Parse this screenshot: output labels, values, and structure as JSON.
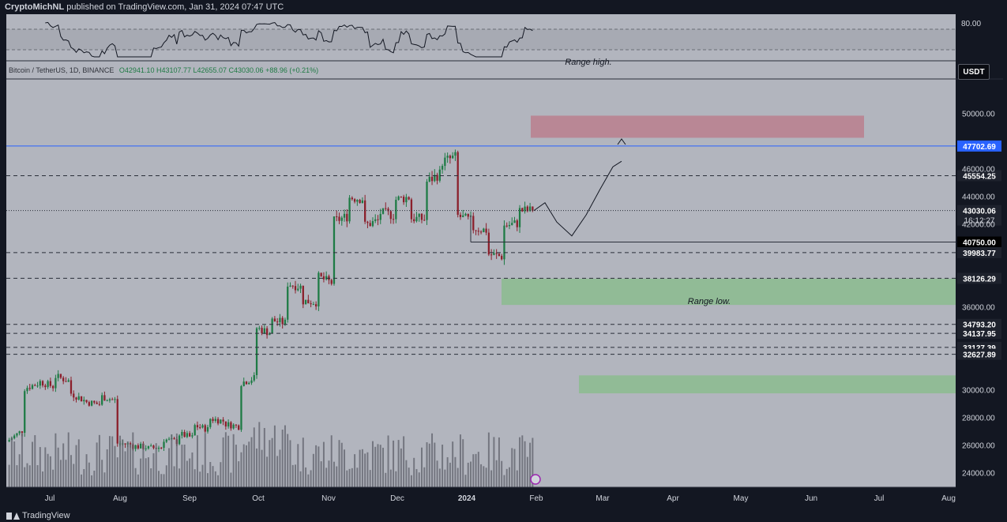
{
  "header": {
    "author": "CryptoMichNL",
    "published_text": "published on TradingView.com, Jan 31, 2024 07:47 UTC"
  },
  "legend": {
    "symbol": "Bitcoin / TetherUS, 1D, BINANCE",
    "ohlc": "O42941.10  H43107.77  L42655.07  C43030.06  +88.96 (+0.21%)"
  },
  "currency_button": "USDT",
  "footer": {
    "brand": "TradingView"
  },
  "colors": {
    "background": "#b2b5be",
    "panel_bg": "#b2b5be",
    "up": "#1e7b45",
    "down": "#8b1f2b",
    "blue_line": "#2962ff",
    "red_zone": "#b98592",
    "green_zone": "#8fbc94",
    "axis_bg": "#131722"
  },
  "chart_data": {
    "type": "candlestick",
    "x_ticks": [
      "Jul",
      "Aug",
      "Sep",
      "Oct",
      "Nov",
      "Dec",
      "2024",
      "Feb",
      "Mar",
      "Apr",
      "May",
      "Jun",
      "Jul",
      "Aug"
    ],
    "y_ticks": [
      24000,
      26000,
      28000,
      30000,
      32000,
      34000,
      36000,
      38000,
      40000,
      42000,
      44000,
      46000,
      48000,
      50000
    ],
    "y_tick_labels": [
      "24000.00",
      "26000.00",
      "28000.00",
      "30000.00",
      "",
      "",
      "36000.00",
      "",
      "",
      "42000.00",
      "44000.00",
      "46000.00",
      "",
      "50000.00"
    ],
    "ylim": [
      23000,
      52500
    ],
    "price_path": [
      [
        26300,
        27100
      ],
      [
        30100,
        30500
      ],
      [
        30700,
        30300
      ],
      [
        31100,
        30700
      ],
      [
        29900,
        29300
      ],
      [
        29200,
        29000
      ],
      [
        29600,
        29300
      ],
      [
        26200,
        26100
      ],
      [
        26000,
        25900
      ],
      [
        25800,
        25900
      ],
      [
        26500,
        26300
      ],
      [
        26900,
        26600
      ],
      [
        27500,
        27200
      ],
      [
        28000,
        27800
      ],
      [
        27600,
        27400
      ],
      [
        30500,
        30900
      ],
      [
        34600,
        34200
      ],
      [
        35100,
        34900
      ],
      [
        37800,
        37500
      ],
      [
        36500,
        36400
      ],
      [
        38300,
        37800
      ],
      [
        42200,
        42600
      ],
      [
        44000,
        43900
      ],
      [
        41900,
        42300
      ],
      [
        42900,
        42700
      ],
      [
        43800,
        44000
      ],
      [
        42500,
        42400
      ],
      [
        45000,
        45700
      ],
      [
        46500,
        46900
      ],
      [
        42700,
        42300
      ],
      [
        41800,
        41600
      ],
      [
        39900,
        39700
      ],
      [
        41900,
        42100
      ],
      [
        43030,
        43030
      ]
    ],
    "price_levels": [
      {
        "label": "47702.69",
        "value": 47702.69,
        "style": "solid-blue",
        "tag": "blue"
      },
      {
        "label": "45554.25",
        "value": 45554.25,
        "style": "dashed",
        "tag": "dark"
      },
      {
        "label": "43030.06",
        "value": 43030.06,
        "style": "dotted",
        "tag": "dark",
        "sub_label": "16:12:27"
      },
      {
        "label": "40750.00",
        "value": 40750.0,
        "style": "solid-short",
        "tag": "black"
      },
      {
        "label": "39983.77",
        "value": 39983.77,
        "style": "dashed",
        "tag": "dark"
      },
      {
        "label": "38126.29",
        "value": 38126.29,
        "style": "dashed",
        "tag": "dark"
      },
      {
        "label": "34793.20",
        "value": 34793.2,
        "style": "dashed",
        "tag": "dark"
      },
      {
        "label": "34137.95",
        "value": 34137.95,
        "style": "dashed",
        "tag": "dark"
      },
      {
        "label": "33127.39",
        "value": 33127.39,
        "style": "dashed",
        "tag": "dark"
      },
      {
        "label": "32627.89",
        "value": 32627.89,
        "style": "dashed",
        "tag": "dark"
      }
    ],
    "zones": [
      {
        "kind": "red",
        "from": 48300,
        "to": 49900
      },
      {
        "kind": "green",
        "from": 36200,
        "to": 38100
      },
      {
        "kind": "green",
        "from": 29800,
        "to": 31100
      }
    ],
    "annotations": [
      {
        "text": "Range high.",
        "y": 51600
      },
      {
        "text": "Range low.",
        "y": 35800
      }
    ],
    "projection_path": [
      [
        43030,
        0
      ],
      [
        43600,
        1
      ],
      [
        42200,
        2
      ],
      [
        41200,
        3
      ],
      [
        42700,
        4
      ],
      [
        44600,
        5
      ],
      [
        46200,
        6
      ],
      [
        46600,
        7
      ]
    ],
    "rsi": {
      "upper_label": "80.00"
    }
  }
}
